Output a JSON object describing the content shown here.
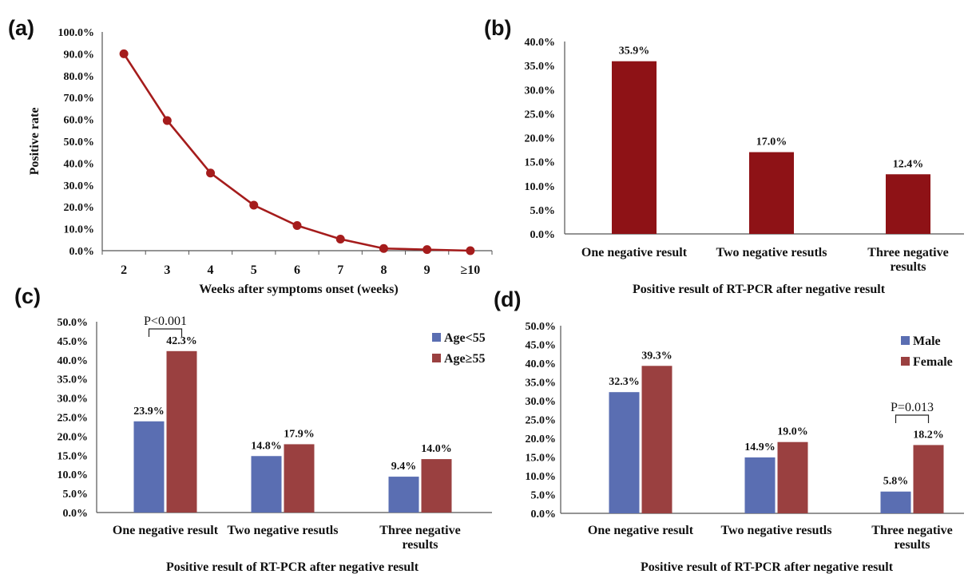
{
  "colors": {
    "line": "#a51c1c",
    "bar_b": "#8e1216",
    "series_blue": "#5a6eb2",
    "series_red": "#9a4040",
    "axis": "#555555"
  },
  "chart_data": [
    {
      "panel": "(a)",
      "type": "line",
      "x": [
        "2",
        "3",
        "4",
        "5",
        "6",
        "7",
        "8",
        "9",
        "≥10"
      ],
      "values": [
        90.0,
        59.5,
        35.5,
        20.8,
        11.5,
        5.3,
        1.0,
        0.5,
        0.0
      ],
      "ylabel": "Positive rate",
      "xlabel": "Weeks after symptoms onset (weeks)",
      "ylim": [
        0,
        100
      ],
      "yticks": [
        "0.0%",
        "10.0%",
        "20.0%",
        "30.0%",
        "40.0%",
        "50.0%",
        "60.0%",
        "70.0%",
        "80.0%",
        "90.0%",
        "100.0%"
      ],
      "grid": false
    },
    {
      "panel": "(b)",
      "type": "bar",
      "categories": [
        "One negative result",
        "Two negative resutls",
        "Three negative results"
      ],
      "values": [
        35.9,
        17.0,
        12.4
      ],
      "data_labels": [
        "35.9%",
        "17.0%",
        "12.4%"
      ],
      "xlabel": "Positive result of RT-PCR after negative result",
      "ylim": [
        0,
        40
      ],
      "yticks": [
        "0.0%",
        "5.0%",
        "10.0%",
        "15.0%",
        "20.0%",
        "25.0%",
        "30.0%",
        "35.0%",
        "40.0%"
      ],
      "grid": false
    },
    {
      "panel": "(c)",
      "type": "bar",
      "categories": [
        "One negative result",
        "Two negative resutls",
        "Three negative results"
      ],
      "series": [
        {
          "name": "Age<55",
          "values": [
            23.9,
            14.8,
            9.4
          ],
          "data_labels": [
            "23.9%",
            "14.8%",
            "9.4%"
          ]
        },
        {
          "name": "Age≥55",
          "values": [
            42.3,
            17.9,
            14.0
          ],
          "data_labels": [
            "42.3%",
            "17.9%",
            "14.0%"
          ]
        }
      ],
      "annotation": {
        "text": "P<0.001",
        "category_index": 0
      },
      "xlabel": "Positive result of RT-PCR after negative result",
      "ylim": [
        0,
        50
      ],
      "yticks": [
        "0.0%",
        "5.0%",
        "10.0%",
        "15.0%",
        "20.0%",
        "25.0%",
        "30.0%",
        "35.0%",
        "40.0%",
        "45.0%",
        "50.0%"
      ],
      "legend": "top-right",
      "grid": false
    },
    {
      "panel": "(d)",
      "type": "bar",
      "categories": [
        "One negative result",
        "Two negative resutls",
        "Three negative results"
      ],
      "series": [
        {
          "name": "Male",
          "values": [
            32.3,
            14.9,
            5.8
          ],
          "data_labels": [
            "32.3%",
            "14.9%",
            "5.8%"
          ]
        },
        {
          "name": "Female",
          "values": [
            39.3,
            19.0,
            18.2
          ],
          "data_labels": [
            "39.3%",
            "19.0%",
            "18.2%"
          ]
        }
      ],
      "annotation": {
        "text": "P=0.013",
        "category_index": 2
      },
      "xlabel": "Positive result of RT-PCR after negative result",
      "ylim": [
        0,
        50
      ],
      "yticks": [
        "0.0%",
        "5.0%",
        "10.0%",
        "15.0%",
        "20.0%",
        "25.0%",
        "30.0%",
        "35.0%",
        "40.0%",
        "45.0%",
        "50.0%"
      ],
      "legend": "top-right",
      "grid": false
    }
  ]
}
